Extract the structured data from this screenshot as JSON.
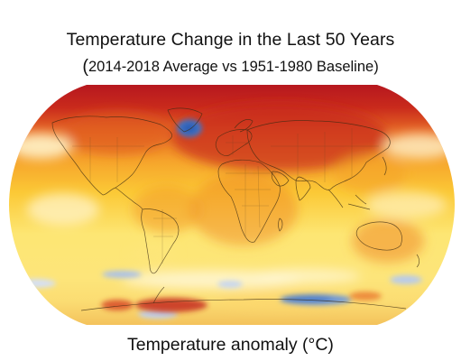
{
  "title": "Temperature Change in the Last 50 Years",
  "subtitle": "2014-2018 Average vs 1951-1980 Baseline",
  "caption": "Temperature anomaly (°C)",
  "colors": {
    "strong_warming": "#b5161f",
    "moderate_warming": "#e76a24",
    "mild_warming": "#f7c230",
    "slight_warming": "#fde673",
    "neutral": "#fffbe0",
    "cooling": "#3f74c7",
    "land_border": "#3a2a12",
    "background": "#ffffff"
  },
  "map": {
    "projection": "robinson",
    "features": [
      "arctic-warming",
      "north-atlantic-cold-blob",
      "antarctic-cooling"
    ]
  }
}
